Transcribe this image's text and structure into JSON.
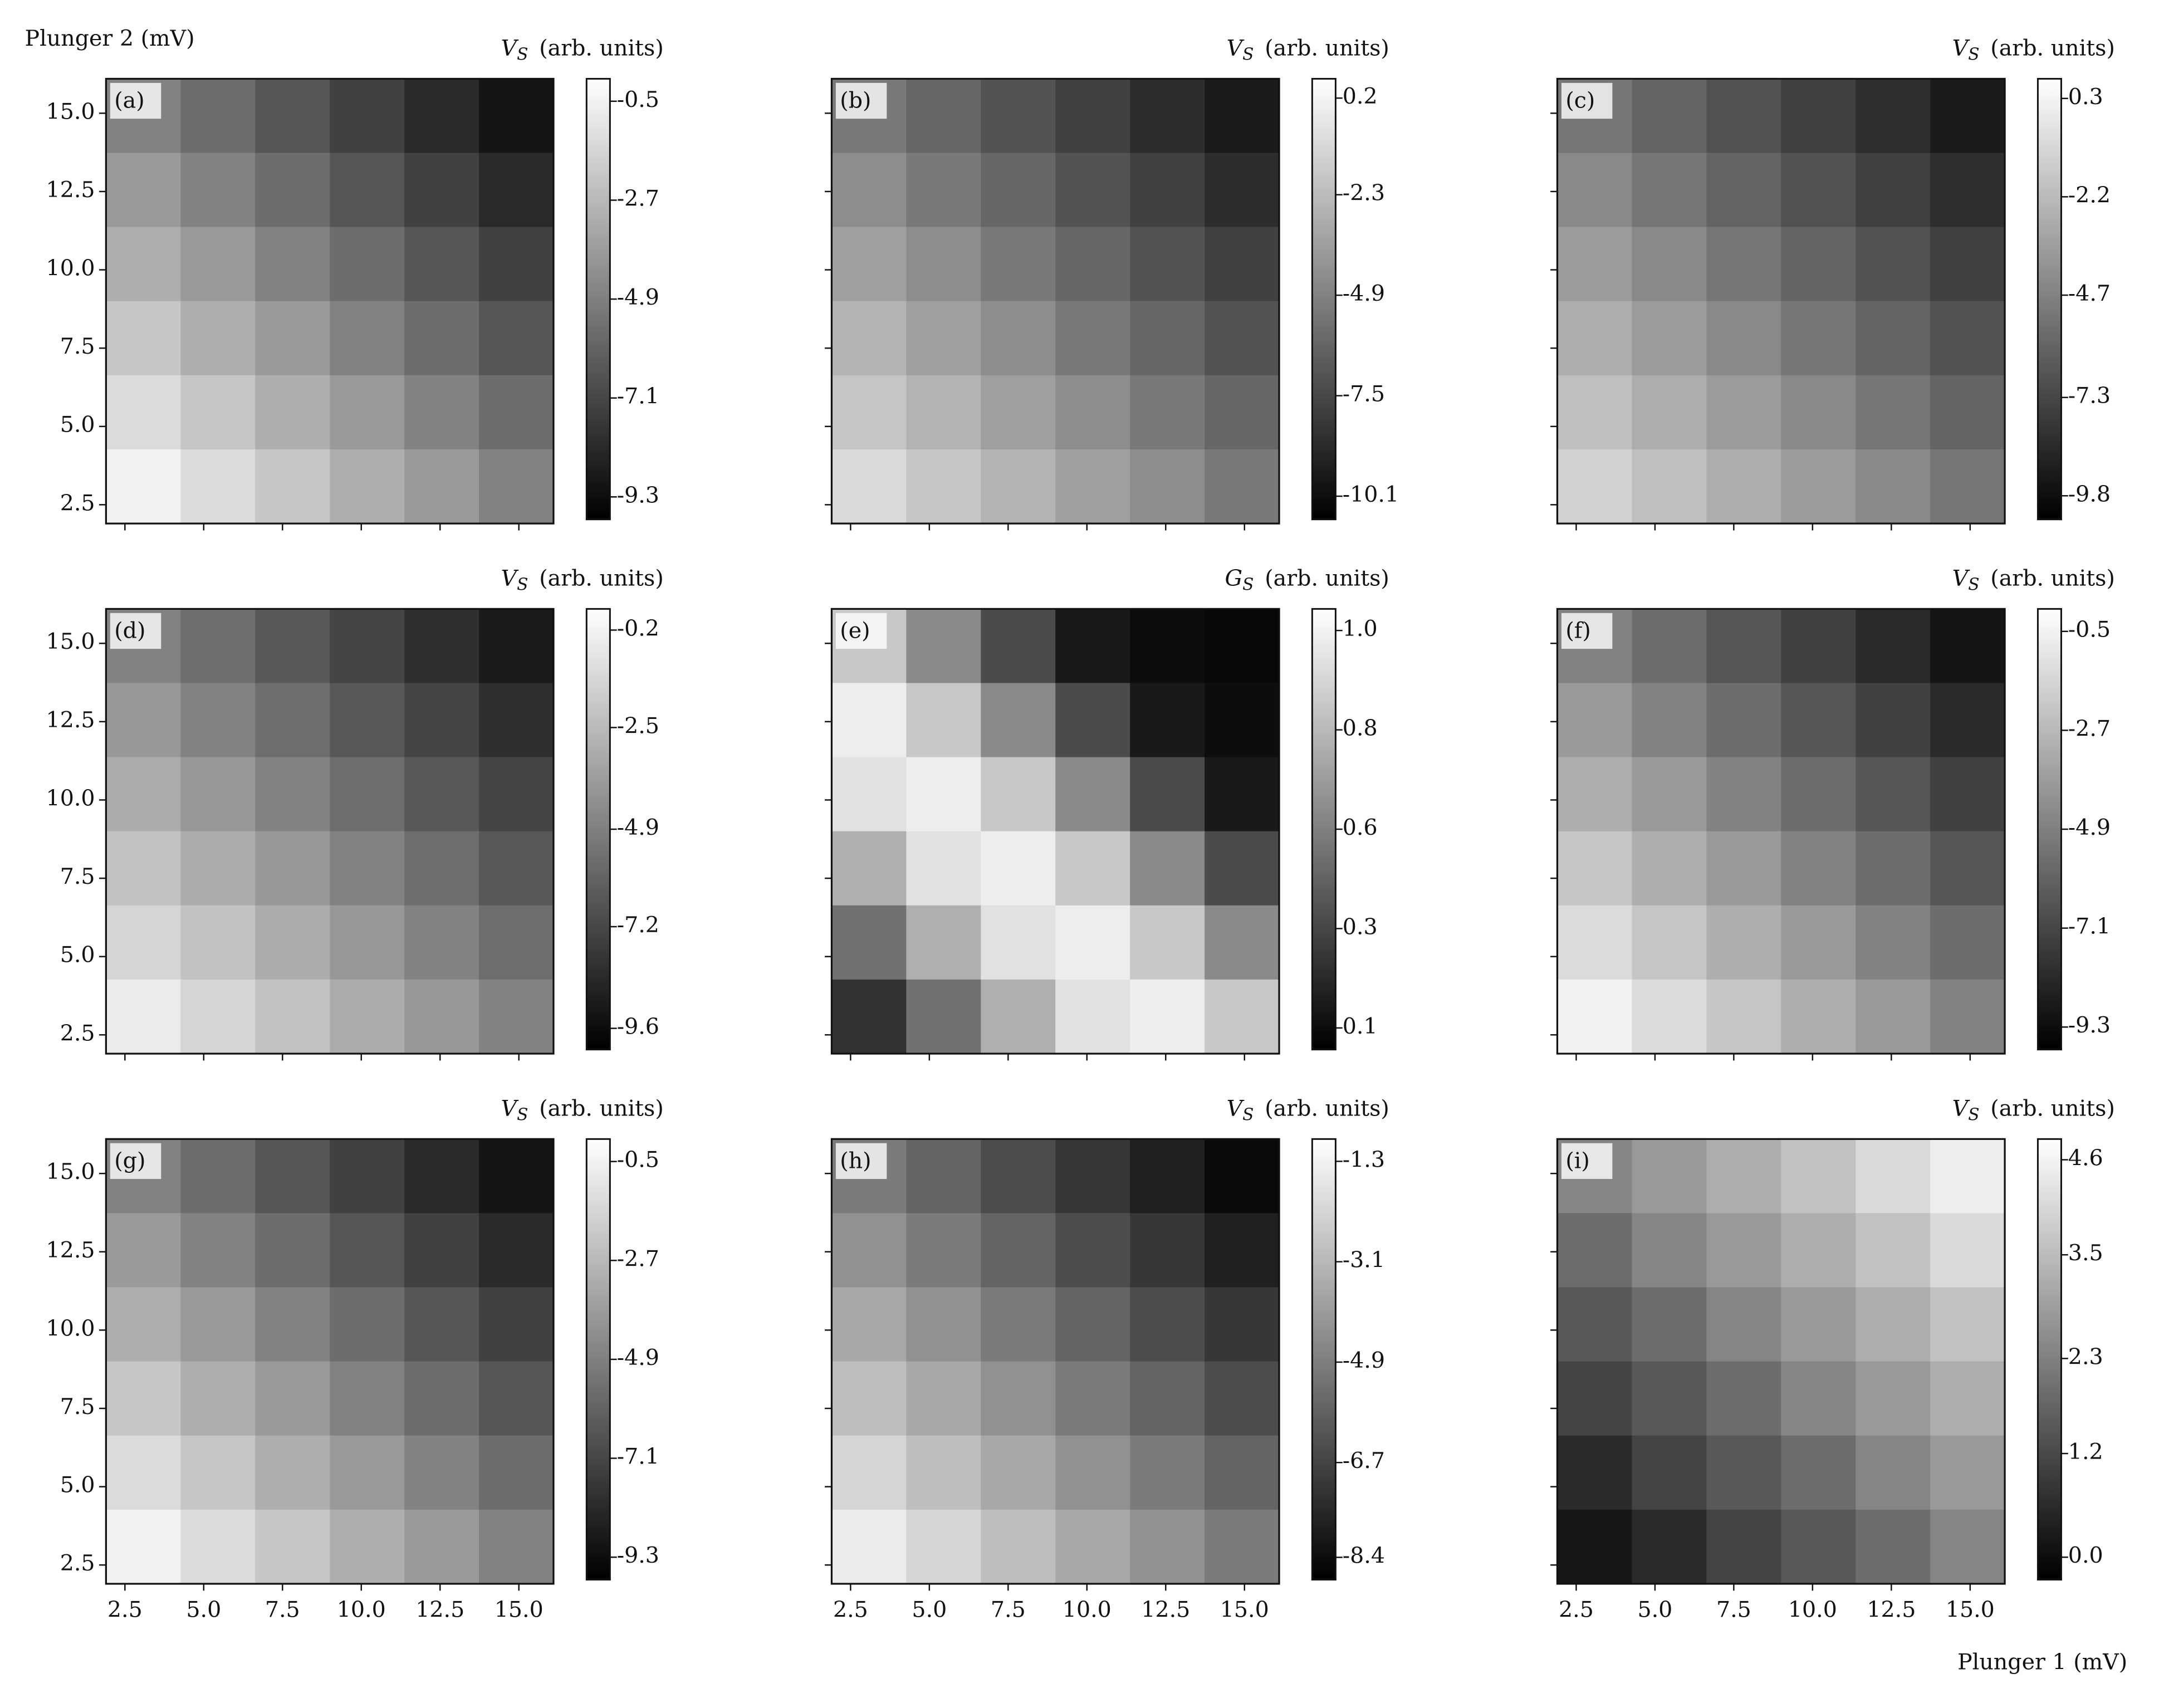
{
  "xlabel": "Plunger 1 (mV)",
  "ylabel": "Plunger 2 (mV)",
  "chart_data": [
    {
      "type": "heatmap",
      "panel_label": "(a)",
      "colorbar_symbol": "V",
      "colorbar_subscript": "S",
      "colorbar_unit": "(arb. units)",
      "xlim": [
        1.9,
        16.1
      ],
      "ylim": [
        1.9,
        16.1
      ],
      "xticks": [
        2.5,
        {
          "value": 5,
          "label": "5.0"
        },
        7.5,
        {
          "value": 10,
          "label": "10.0"
        },
        12.5,
        {
          "value": 15,
          "label": "15.0"
        }
      ],
      "yticks": [
        2.5,
        {
          "value": 5,
          "label": "5.0"
        },
        7.5,
        {
          "value": 10,
          "label": "10.0"
        },
        12.5,
        {
          "value": 15,
          "label": "15.0"
        }
      ],
      "clim": [
        -9.8,
        0.0
      ],
      "cticks": [
        -0.5,
        -2.7,
        -4.9,
        -7.1,
        -9.3
      ],
      "z": [
        [
          -4.8,
          -5.6,
          -6.5,
          -7.3,
          -8.2,
          -9.0
        ],
        [
          -3.9,
          -4.8,
          -5.6,
          -6.5,
          -7.3,
          -8.2
        ],
        [
          -3.1,
          -3.9,
          -4.8,
          -5.6,
          -6.5,
          -7.3
        ],
        [
          -2.2,
          -3.1,
          -3.9,
          -4.8,
          -5.6,
          -6.5
        ],
        [
          -1.4,
          -2.2,
          -3.1,
          -3.9,
          -4.8,
          -5.6
        ],
        [
          -0.5,
          -1.4,
          -2.2,
          -3.1,
          -3.9,
          -4.8
        ]
      ]
    },
    {
      "type": "heatmap",
      "panel_label": "(b)",
      "colorbar_symbol": "V",
      "colorbar_subscript": "S",
      "colorbar_unit": "(arb. units)",
      "xlim": [
        1.9,
        16.1
      ],
      "ylim": [
        1.9,
        16.1
      ],
      "xticks": [
        2.5,
        {
          "value": 5,
          "label": "5.0"
        },
        7.5,
        {
          "value": 10,
          "label": "10.0"
        },
        12.5,
        {
          "value": 15,
          "label": "15.0"
        }
      ],
      "yticks": [
        2.5,
        {
          "value": 5,
          "label": "5.0"
        },
        7.5,
        {
          "value": 10,
          "label": "10.0"
        },
        12.5,
        {
          "value": 15,
          "label": "15.0"
        }
      ],
      "clim": [
        -10.7,
        0.7
      ],
      "cticks": [
        0.2,
        -2.3,
        -4.9,
        -7.5,
        -10.1
      ],
      "z": [
        [
          -5.3,
          -6.1,
          -7.0,
          -7.8,
          -8.7,
          -9.5
        ],
        [
          -4.4,
          -5.3,
          -6.1,
          -7.0,
          -7.8,
          -8.7
        ],
        [
          -3.6,
          -4.4,
          -5.3,
          -6.1,
          -7.0,
          -7.8
        ],
        [
          -2.7,
          -3.6,
          -4.4,
          -5.3,
          -6.1,
          -7.0
        ],
        [
          -1.9,
          -2.7,
          -3.6,
          -4.4,
          -5.3,
          -6.1
        ],
        [
          -1.0,
          -1.9,
          -2.7,
          -3.6,
          -4.4,
          -5.3
        ]
      ]
    },
    {
      "type": "heatmap",
      "panel_label": "(c)",
      "colorbar_symbol": "V",
      "colorbar_subscript": "S",
      "colorbar_unit": "(arb. units)",
      "xlim": [
        1.9,
        16.1
      ],
      "ylim": [
        1.9,
        16.1
      ],
      "xticks": [
        2.5,
        {
          "value": 5,
          "label": "5.0"
        },
        7.5,
        {
          "value": 10,
          "label": "10.0"
        },
        12.5,
        {
          "value": 15,
          "label": "15.0"
        }
      ],
      "yticks": [
        2.5,
        {
          "value": 5,
          "label": "5.0"
        },
        7.5,
        {
          "value": 10,
          "label": "10.0"
        },
        12.5,
        {
          "value": 15,
          "label": "15.0"
        }
      ],
      "clim": [
        -10.4,
        0.8
      ],
      "cticks": [
        0.3,
        -2.2,
        -4.7,
        -7.3,
        -9.8
      ],
      "z": [
        [
          -5.2,
          -6.0,
          -6.8,
          -7.6,
          -8.4,
          -9.2
        ],
        [
          -4.4,
          -5.2,
          -6.0,
          -6.8,
          -7.6,
          -8.4
        ],
        [
          -3.6,
          -4.4,
          -5.2,
          -6.0,
          -6.8,
          -7.6
        ],
        [
          -2.8,
          -3.6,
          -4.4,
          -5.2,
          -6.0,
          -6.8
        ],
        [
          -2.0,
          -2.8,
          -3.6,
          -4.4,
          -5.2,
          -6.0
        ],
        [
          -1.2,
          -2.0,
          -2.8,
          -3.6,
          -4.4,
          -5.2
        ]
      ]
    },
    {
      "type": "heatmap",
      "panel_label": "(d)",
      "colorbar_symbol": "V",
      "colorbar_subscript": "S",
      "colorbar_unit": "(arb. units)",
      "xlim": [
        1.9,
        16.1
      ],
      "ylim": [
        1.9,
        16.1
      ],
      "xticks": [
        2.5,
        {
          "value": 5,
          "label": "5.0"
        },
        7.5,
        {
          "value": 10,
          "label": "10.0"
        },
        12.5,
        {
          "value": 15,
          "label": "15.0"
        }
      ],
      "yticks": [
        2.5,
        {
          "value": 5,
          "label": "5.0"
        },
        7.5,
        {
          "value": 10,
          "label": "10.0"
        },
        12.5,
        {
          "value": 15,
          "label": "15.0"
        }
      ],
      "clim": [
        -10.1,
        0.3
      ],
      "cticks": [
        -0.2,
        -2.5,
        -4.9,
        -7.2,
        -9.6
      ],
      "z": [
        [
          -4.8,
          -5.6,
          -6.5,
          -7.3,
          -8.2,
          -9.0
        ],
        [
          -3.9,
          -4.8,
          -5.6,
          -6.5,
          -7.3,
          -8.2
        ],
        [
          -3.1,
          -3.9,
          -4.8,
          -5.6,
          -6.5,
          -7.3
        ],
        [
          -2.2,
          -3.1,
          -3.9,
          -4.8,
          -5.6,
          -6.5
        ],
        [
          -1.4,
          -2.2,
          -3.1,
          -3.9,
          -4.8,
          -5.6
        ],
        [
          -0.5,
          -1.4,
          -2.2,
          -3.1,
          -3.9,
          -4.8
        ]
      ]
    },
    {
      "type": "heatmap",
      "panel_label": "(e)",
      "colorbar_symbol": "G",
      "colorbar_subscript": "S",
      "colorbar_unit": "(arb. units)",
      "xlim": [
        1.9,
        16.1
      ],
      "ylim": [
        1.9,
        16.1
      ],
      "xticks": [
        2.5,
        {
          "value": 5,
          "label": "5.0"
        },
        7.5,
        {
          "value": 10,
          "label": "10.0"
        },
        12.5,
        {
          "value": 15,
          "label": "15.0"
        }
      ],
      "yticks": [
        2.5,
        {
          "value": 5,
          "label": "5.0"
        },
        7.5,
        {
          "value": 10,
          "label": "10.0"
        },
        12.5,
        {
          "value": 15,
          "label": "15.0"
        }
      ],
      "clim": [
        0.05,
        1.07
      ],
      "cticks": [
        {
          "value": 1.02,
          "label": "1.0"
        },
        {
          "value": 0.79,
          "label": "0.8"
        },
        {
          "value": 0.56,
          "label": "0.6"
        },
        {
          "value": 0.33,
          "label": "0.3"
        },
        {
          "value": 0.1,
          "label": "0.1"
        }
      ],
      "z": [
        [
          0.85,
          0.6,
          0.35,
          0.15,
          0.1,
          0.08
        ],
        [
          1.0,
          0.85,
          0.6,
          0.35,
          0.15,
          0.1
        ],
        [
          0.95,
          1.0,
          0.85,
          0.6,
          0.35,
          0.15
        ],
        [
          0.75,
          0.95,
          1.0,
          0.85,
          0.6,
          0.35
        ],
        [
          0.5,
          0.75,
          0.95,
          1.0,
          0.85,
          0.6
        ],
        [
          0.25,
          0.5,
          0.75,
          0.95,
          1.0,
          0.85
        ]
      ]
    },
    {
      "type": "heatmap",
      "panel_label": "(f)",
      "colorbar_symbol": "V",
      "colorbar_subscript": "S",
      "colorbar_unit": "(arb. units)",
      "xlim": [
        1.9,
        16.1
      ],
      "ylim": [
        1.9,
        16.1
      ],
      "xticks": [
        2.5,
        {
          "value": 5,
          "label": "5.0"
        },
        7.5,
        {
          "value": 10,
          "label": "10.0"
        },
        12.5,
        {
          "value": 15,
          "label": "15.0"
        }
      ],
      "yticks": [
        2.5,
        {
          "value": 5,
          "label": "5.0"
        },
        7.5,
        {
          "value": 10,
          "label": "10.0"
        },
        12.5,
        {
          "value": 15,
          "label": "15.0"
        }
      ],
      "clim": [
        -9.8,
        0.0
      ],
      "cticks": [
        -0.5,
        -2.7,
        -4.9,
        -7.1,
        -9.3
      ],
      "z": [
        [
          -4.8,
          -5.6,
          -6.5,
          -7.3,
          -8.2,
          -9.0
        ],
        [
          -3.9,
          -4.8,
          -5.6,
          -6.5,
          -7.3,
          -8.2
        ],
        [
          -3.1,
          -3.9,
          -4.8,
          -5.6,
          -6.5,
          -7.3
        ],
        [
          -2.2,
          -3.1,
          -3.9,
          -4.8,
          -5.6,
          -6.5
        ],
        [
          -1.4,
          -2.2,
          -3.1,
          -3.9,
          -4.8,
          -5.6
        ],
        [
          -0.5,
          -1.4,
          -2.2,
          -3.1,
          -3.9,
          -4.8
        ]
      ]
    },
    {
      "type": "heatmap",
      "panel_label": "(g)",
      "colorbar_symbol": "V",
      "colorbar_subscript": "S",
      "colorbar_unit": "(arb. units)",
      "xlim": [
        1.9,
        16.1
      ],
      "ylim": [
        1.9,
        16.1
      ],
      "xticks": [
        2.5,
        {
          "value": 5,
          "label": "5.0"
        },
        7.5,
        {
          "value": 10,
          "label": "10.0"
        },
        12.5,
        {
          "value": 15,
          "label": "15.0"
        }
      ],
      "yticks": [
        2.5,
        {
          "value": 5,
          "label": "5.0"
        },
        7.5,
        {
          "value": 10,
          "label": "10.0"
        },
        12.5,
        {
          "value": 15,
          "label": "15.0"
        }
      ],
      "clim": [
        -9.8,
        0.0
      ],
      "cticks": [
        -0.5,
        -2.7,
        -4.9,
        -7.1,
        -9.3
      ],
      "z": [
        [
          -4.8,
          -5.6,
          -6.5,
          -7.3,
          -8.2,
          -9.0
        ],
        [
          -3.9,
          -4.8,
          -5.6,
          -6.5,
          -7.3,
          -8.2
        ],
        [
          -3.1,
          -3.9,
          -4.8,
          -5.6,
          -6.5,
          -7.3
        ],
        [
          -2.2,
          -3.1,
          -3.9,
          -4.8,
          -5.6,
          -6.5
        ],
        [
          -1.4,
          -2.2,
          -3.1,
          -3.9,
          -4.8,
          -5.6
        ],
        [
          -0.5,
          -1.4,
          -2.2,
          -3.1,
          -3.9,
          -4.8
        ]
      ]
    },
    {
      "type": "heatmap",
      "panel_label": "(h)",
      "colorbar_symbol": "V",
      "colorbar_subscript": "S",
      "colorbar_unit": "(arb. units)",
      "xlim": [
        1.9,
        16.1
      ],
      "ylim": [
        1.9,
        16.1
      ],
      "xticks": [
        2.5,
        {
          "value": 5,
          "label": "5.0"
        },
        7.5,
        {
          "value": 10,
          "label": "10.0"
        },
        12.5,
        {
          "value": 15,
          "label": "15.0"
        }
      ],
      "yticks": [
        2.5,
        {
          "value": 5,
          "label": "5.0"
        },
        7.5,
        {
          "value": 10,
          "label": "10.0"
        },
        12.5,
        {
          "value": 15,
          "label": "15.0"
        }
      ],
      "clim": [
        -8.8,
        -0.9
      ],
      "cticks": [
        -1.3,
        -3.1,
        -4.9,
        -6.7,
        -8.4
      ],
      "z": [
        [
          -5.0,
          -5.7,
          -6.4,
          -7.1,
          -7.8,
          -8.5
        ],
        [
          -4.3,
          -5.0,
          -5.7,
          -6.4,
          -7.1,
          -7.8
        ],
        [
          -3.6,
          -4.3,
          -5.0,
          -5.7,
          -6.4,
          -7.1
        ],
        [
          -2.9,
          -3.6,
          -4.3,
          -5.0,
          -5.7,
          -6.4
        ],
        [
          -2.2,
          -2.9,
          -3.6,
          -4.3,
          -5.0,
          -5.7
        ],
        [
          -1.5,
          -2.2,
          -2.9,
          -3.6,
          -4.3,
          -5.0
        ]
      ]
    },
    {
      "type": "heatmap",
      "panel_label": "(i)",
      "colorbar_symbol": "V",
      "colorbar_subscript": "S",
      "colorbar_unit": "(arb. units)",
      "xlim": [
        1.9,
        16.1
      ],
      "ylim": [
        1.9,
        16.1
      ],
      "xticks": [
        2.5,
        {
          "value": 5,
          "label": "5.0"
        },
        7.5,
        {
          "value": 10,
          "label": "10.0"
        },
        12.5,
        {
          "value": 15,
          "label": "15.0"
        }
      ],
      "yticks": [
        2.5,
        {
          "value": 5,
          "label": "5.0"
        },
        7.5,
        {
          "value": 10,
          "label": "10.0"
        },
        12.5,
        {
          "value": 15,
          "label": "15.0"
        }
      ],
      "clim": [
        -0.26,
        4.84
      ],
      "cticks": [
        4.6,
        3.5,
        2.3,
        1.2,
        {
          "value": 0,
          "label": "0.0"
        }
      ],
      "z": [
        [
          2.4,
          2.8,
          3.2,
          3.6,
          4.1,
          4.5
        ],
        [
          1.9,
          2.4,
          2.8,
          3.2,
          3.6,
          4.1
        ],
        [
          1.5,
          1.9,
          2.4,
          2.8,
          3.2,
          3.6
        ],
        [
          1.1,
          1.5,
          1.9,
          2.4,
          2.8,
          3.2
        ],
        [
          0.6,
          1.1,
          1.5,
          1.9,
          2.4,
          2.8
        ],
        [
          0.2,
          0.6,
          1.1,
          1.5,
          1.9,
          2.4
        ]
      ]
    }
  ]
}
